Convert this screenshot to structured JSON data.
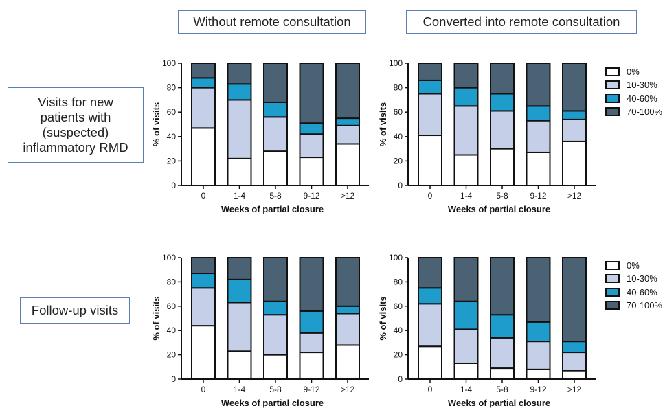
{
  "colors": {
    "0%": "#ffffff",
    "10-30%": "#c5d0e8",
    "40-60%": "#1e9ccc",
    "70-100%": "#4a6274",
    "outline": "#111111"
  },
  "column_titles": [
    "Without remote consultation",
    "Converted into remote consultation"
  ],
  "row_labels": [
    "Visits for new\npatients with\n(suspected)\ninflammatory RMD",
    "Follow-up visits"
  ],
  "legend": [
    "0%",
    "10-30%",
    "40-60%",
    "70-100%"
  ],
  "chart_data": [
    {
      "type": "bar",
      "stacked": true,
      "categories": [
        "0",
        "1-4",
        "5-8",
        "9-12",
        ">12"
      ],
      "xlabel": "Weeks of partial closure",
      "ylabel": "% of visits",
      "ylim": [
        0,
        100
      ],
      "yticks": [
        0,
        20,
        40,
        60,
        80,
        100
      ],
      "series": [
        {
          "name": "0%",
          "values": [
            47,
            22,
            28,
            23,
            34
          ]
        },
        {
          "name": "10-30%",
          "values": [
            33,
            48,
            28,
            19,
            15
          ]
        },
        {
          "name": "40-60%",
          "values": [
            8,
            13,
            12,
            9,
            6
          ]
        },
        {
          "name": "70-100%",
          "values": [
            12,
            17,
            32,
            49,
            45
          ]
        }
      ]
    },
    {
      "type": "bar",
      "stacked": true,
      "categories": [
        "0",
        "1-4",
        "5-8",
        "9-12",
        ">12"
      ],
      "xlabel": "Weeks of partial closure",
      "ylabel": "% of visits",
      "ylim": [
        0,
        100
      ],
      "yticks": [
        0,
        20,
        40,
        60,
        80,
        100
      ],
      "series": [
        {
          "name": "0%",
          "values": [
            41,
            25,
            30,
            27,
            36
          ]
        },
        {
          "name": "10-30%",
          "values": [
            34,
            40,
            31,
            26,
            18
          ]
        },
        {
          "name": "40-60%",
          "values": [
            11,
            15,
            14,
            12,
            7
          ]
        },
        {
          "name": "70-100%",
          "values": [
            14,
            20,
            25,
            35,
            39
          ]
        }
      ]
    },
    {
      "type": "bar",
      "stacked": true,
      "categories": [
        "0",
        "1-4",
        "5-8",
        "9-12",
        ">12"
      ],
      "xlabel": "Weeks of partial closure",
      "ylabel": "% of visits",
      "ylim": [
        0,
        100
      ],
      "yticks": [
        0,
        20,
        40,
        60,
        80,
        100
      ],
      "series": [
        {
          "name": "0%",
          "values": [
            44,
            23,
            20,
            22,
            28
          ]
        },
        {
          "name": "10-30%",
          "values": [
            31,
            40,
            33,
            16,
            26
          ]
        },
        {
          "name": "40-60%",
          "values": [
            12,
            19,
            11,
            18,
            6
          ]
        },
        {
          "name": "70-100%",
          "values": [
            13,
            18,
            36,
            44,
            40
          ]
        }
      ]
    },
    {
      "type": "bar",
      "stacked": true,
      "categories": [
        "0",
        "1-4",
        "5-8",
        "9-12",
        ">12"
      ],
      "xlabel": "Weeks of partial closure",
      "ylabel": "% of visits",
      "ylim": [
        0,
        100
      ],
      "yticks": [
        0,
        20,
        40,
        60,
        80,
        100
      ],
      "series": [
        {
          "name": "0%",
          "values": [
            27,
            13,
            9,
            8,
            7
          ]
        },
        {
          "name": "10-30%",
          "values": [
            35,
            28,
            25,
            23,
            15
          ]
        },
        {
          "name": "40-60%",
          "values": [
            13,
            23,
            19,
            16,
            9
          ]
        },
        {
          "name": "70-100%",
          "values": [
            25,
            36,
            47,
            53,
            69
          ]
        }
      ]
    }
  ]
}
